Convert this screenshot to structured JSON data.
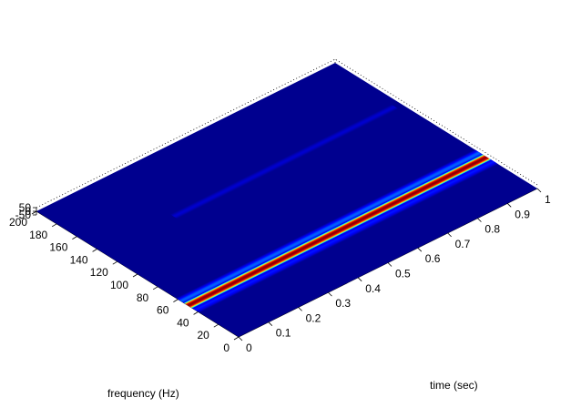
{
  "chart_data": {
    "type": "surface",
    "title": "",
    "xlabel": "time (sec)",
    "ylabel": "frequency (Hz)",
    "zlabel": "",
    "x_range": [
      0,
      1
    ],
    "y_range": [
      0,
      200
    ],
    "z_range": [
      -50,
      50
    ],
    "x_ticks": [
      "0",
      "0.1",
      "0.2",
      "0.3",
      "0.4",
      "0.5",
      "0.6",
      "0.7",
      "0.8",
      "0.9",
      "1"
    ],
    "y_ticks": [
      "0",
      "20",
      "40",
      "60",
      "80",
      "100",
      "120",
      "140",
      "160",
      "180",
      "200"
    ],
    "z_ticks": [
      "50",
      "0",
      "-50"
    ],
    "colormap": [
      "#00008f",
      "#0000ff",
      "#00ffff",
      "#ffff00",
      "#ff0000",
      "#800000"
    ],
    "background_color": "#00008f",
    "ridges": [
      {
        "time": [
          0,
          1
        ],
        "frequency": [
          50,
          50
        ],
        "level": 1.0,
        "width_hz": 3.4
      },
      {
        "time": [
          0,
          1
        ],
        "frequency": [
          57,
          57
        ],
        "level": 0.28,
        "width_hz": 3.5
      },
      {
        "time": [
          0,
          1
        ],
        "frequency": [
          43,
          43
        ],
        "level": 0.22,
        "width_hz": 3.0
      },
      {
        "time": [
          0.24,
          0.98
        ],
        "frequency": [
          135,
          135
        ],
        "level": 0.12,
        "width_hz": 2.5
      }
    ],
    "grid": false,
    "legend": "none"
  }
}
